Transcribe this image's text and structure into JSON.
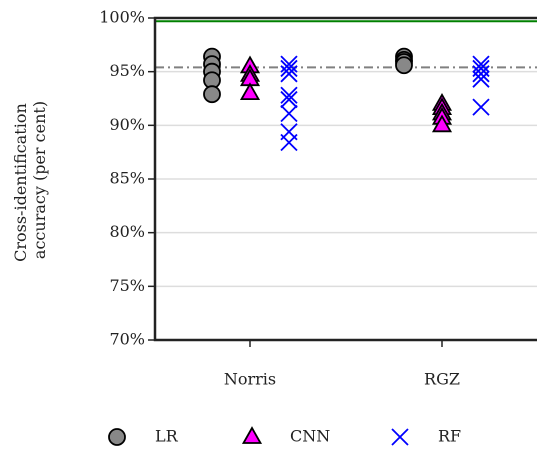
{
  "chart_data": {
    "type": "strip",
    "ylabel": [
      "Cross-identification",
      "accuracy (per cent)"
    ],
    "categories": [
      "Norris",
      "RGZ"
    ],
    "series": [
      {
        "name": "LR",
        "marker": "circle",
        "color": "#888888",
        "values": [
          [
            96.4,
            95.7,
            95.0,
            94.2,
            92.9
          ],
          [
            96.4,
            96.1,
            95.9,
            95.6
          ]
        ]
      },
      {
        "name": "CNN",
        "marker": "triangle",
        "color": "#ff00ff",
        "values": [
          [
            95.5,
            94.7,
            94.3,
            93.0
          ],
          [
            92.0,
            91.6,
            91.1,
            90.7,
            90.0
          ]
        ]
      },
      {
        "name": "RF",
        "marker": "x",
        "color": "#0000ff",
        "values": [
          [
            95.7,
            95.3,
            94.8,
            92.8,
            92.4,
            91.1,
            89.4,
            88.4
          ],
          [
            95.7,
            95.3,
            94.8,
            94.3,
            91.7
          ]
        ]
      }
    ],
    "reference_lines": [
      {
        "value": 99.7,
        "color": "#008000",
        "style": "solid"
      },
      {
        "value": 95.4,
        "color": "#808080",
        "style": "dashdot"
      }
    ],
    "ylim": [
      70,
      100
    ],
    "yticks": [
      {
        "value": 70,
        "label": "70%"
      },
      {
        "value": 75,
        "label": "75%"
      },
      {
        "value": 80,
        "label": "80%"
      },
      {
        "value": 85,
        "label": "85%"
      },
      {
        "value": 90,
        "label": "90%"
      },
      {
        "value": 95,
        "label": "95%"
      },
      {
        "value": 100,
        "label": "100%"
      }
    ],
    "grid": true,
    "legend": "bottom"
  }
}
